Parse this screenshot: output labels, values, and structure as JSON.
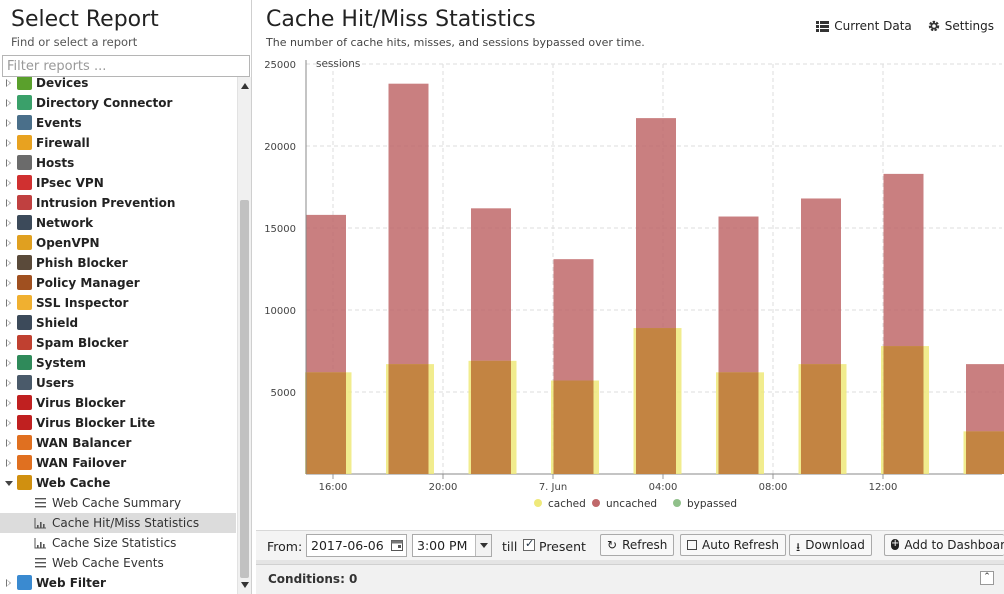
{
  "left_panel": {
    "title": "Select Report",
    "subtitle": "Find or select a report",
    "filter_placeholder": "Filter reports ...",
    "items": [
      {
        "label": "Devices",
        "icon": "devices-icon",
        "color": "#5aa02c"
      },
      {
        "label": "Directory Connector",
        "icon": "directory-connector-icon",
        "color": "#3aa06a"
      },
      {
        "label": "Events",
        "icon": "events-icon",
        "color": "#4a6f8a"
      },
      {
        "label": "Firewall",
        "icon": "firewall-icon",
        "color": "#e8a220"
      },
      {
        "label": "Hosts",
        "icon": "hosts-icon",
        "color": "#6b6b6b"
      },
      {
        "label": "IPsec VPN",
        "icon": "ipsec-vpn-icon",
        "color": "#d03030"
      },
      {
        "label": "Intrusion Prevention",
        "icon": "intrusion-prevention-icon",
        "color": "#c04040"
      },
      {
        "label": "Network",
        "icon": "network-icon",
        "color": "#3c4a5a"
      },
      {
        "label": "OpenVPN",
        "icon": "openvpn-icon",
        "color": "#e0a020"
      },
      {
        "label": "Phish Blocker",
        "icon": "phish-blocker-icon",
        "color": "#5a4a3a"
      },
      {
        "label": "Policy Manager",
        "icon": "policy-manager-icon",
        "color": "#a05020"
      },
      {
        "label": "SSL Inspector",
        "icon": "ssl-inspector-icon",
        "color": "#f0b030"
      },
      {
        "label": "Shield",
        "icon": "shield-icon",
        "color": "#3c4a5a"
      },
      {
        "label": "Spam Blocker",
        "icon": "spam-blocker-icon",
        "color": "#c04030"
      },
      {
        "label": "System",
        "icon": "system-icon",
        "color": "#2f8a5a"
      },
      {
        "label": "Users",
        "icon": "users-icon",
        "color": "#4a5a6a"
      },
      {
        "label": "Virus Blocker",
        "icon": "virus-blocker-icon",
        "color": "#c02020"
      },
      {
        "label": "Virus Blocker Lite",
        "icon": "virus-blocker-lite-icon",
        "color": "#c02020"
      },
      {
        "label": "WAN Balancer",
        "icon": "wan-balancer-icon",
        "color": "#e07020"
      },
      {
        "label": "WAN Failover",
        "icon": "wan-failover-icon",
        "color": "#e07020"
      },
      {
        "label": "Web Cache",
        "icon": "web-cache-icon",
        "color": "#d09010",
        "expanded": true,
        "children": [
          {
            "label": "Web Cache Summary",
            "icon": "list-icon"
          },
          {
            "label": "Cache Hit/Miss Statistics",
            "icon": "bar-chart-icon",
            "selected": true
          },
          {
            "label": "Cache Size Statistics",
            "icon": "bar-chart-icon"
          },
          {
            "label": "Web Cache Events",
            "icon": "list-icon"
          }
        ]
      },
      {
        "label": "Web Filter",
        "icon": "web-filter-icon",
        "color": "#3a8ad0"
      }
    ]
  },
  "report": {
    "title": "Cache Hit/Miss Statistics",
    "subtitle": "The number of cache hits, misses, and sessions bypassed over time.",
    "actions": {
      "current_data": "Current Data",
      "settings": "Settings"
    }
  },
  "chart_data": {
    "type": "bar",
    "ylabel": "sessions",
    "ylim": [
      0,
      25000
    ],
    "yticks": [
      5000,
      10000,
      15000,
      20000,
      25000
    ],
    "xticks": [
      "16:00",
      "20:00",
      "7. Jun",
      "04:00",
      "08:00",
      "12:00"
    ],
    "x_hours": [
      0,
      3,
      6,
      9,
      12,
      15,
      18,
      21,
      24
    ],
    "series": [
      {
        "name": "cached",
        "color": "#efe97a",
        "values": [
          6200,
          6700,
          6900,
          5700,
          8900,
          6200,
          6700,
          7800,
          2600
        ]
      },
      {
        "name": "uncached",
        "color": "#c0686a",
        "values": [
          15800,
          23800,
          16200,
          13100,
          21700,
          15700,
          16800,
          18300,
          6700
        ]
      },
      {
        "name": "bypassed",
        "color": "#90c08a",
        "values": [
          0,
          0,
          0,
          0,
          0,
          0,
          0,
          0,
          0
        ]
      }
    ],
    "legend_position": "bottom"
  },
  "toolbar": {
    "from_label": "From:",
    "date_value": "2017-06-06",
    "time_value": "3:00 PM",
    "till_label": "till",
    "present_label": "Present",
    "refresh_label": "Refresh",
    "auto_refresh_label": "Auto Refresh",
    "download_label": "Download",
    "add_dashboard_label": "Add to Dashboard"
  },
  "conditions": {
    "label": "Conditions: 0"
  }
}
